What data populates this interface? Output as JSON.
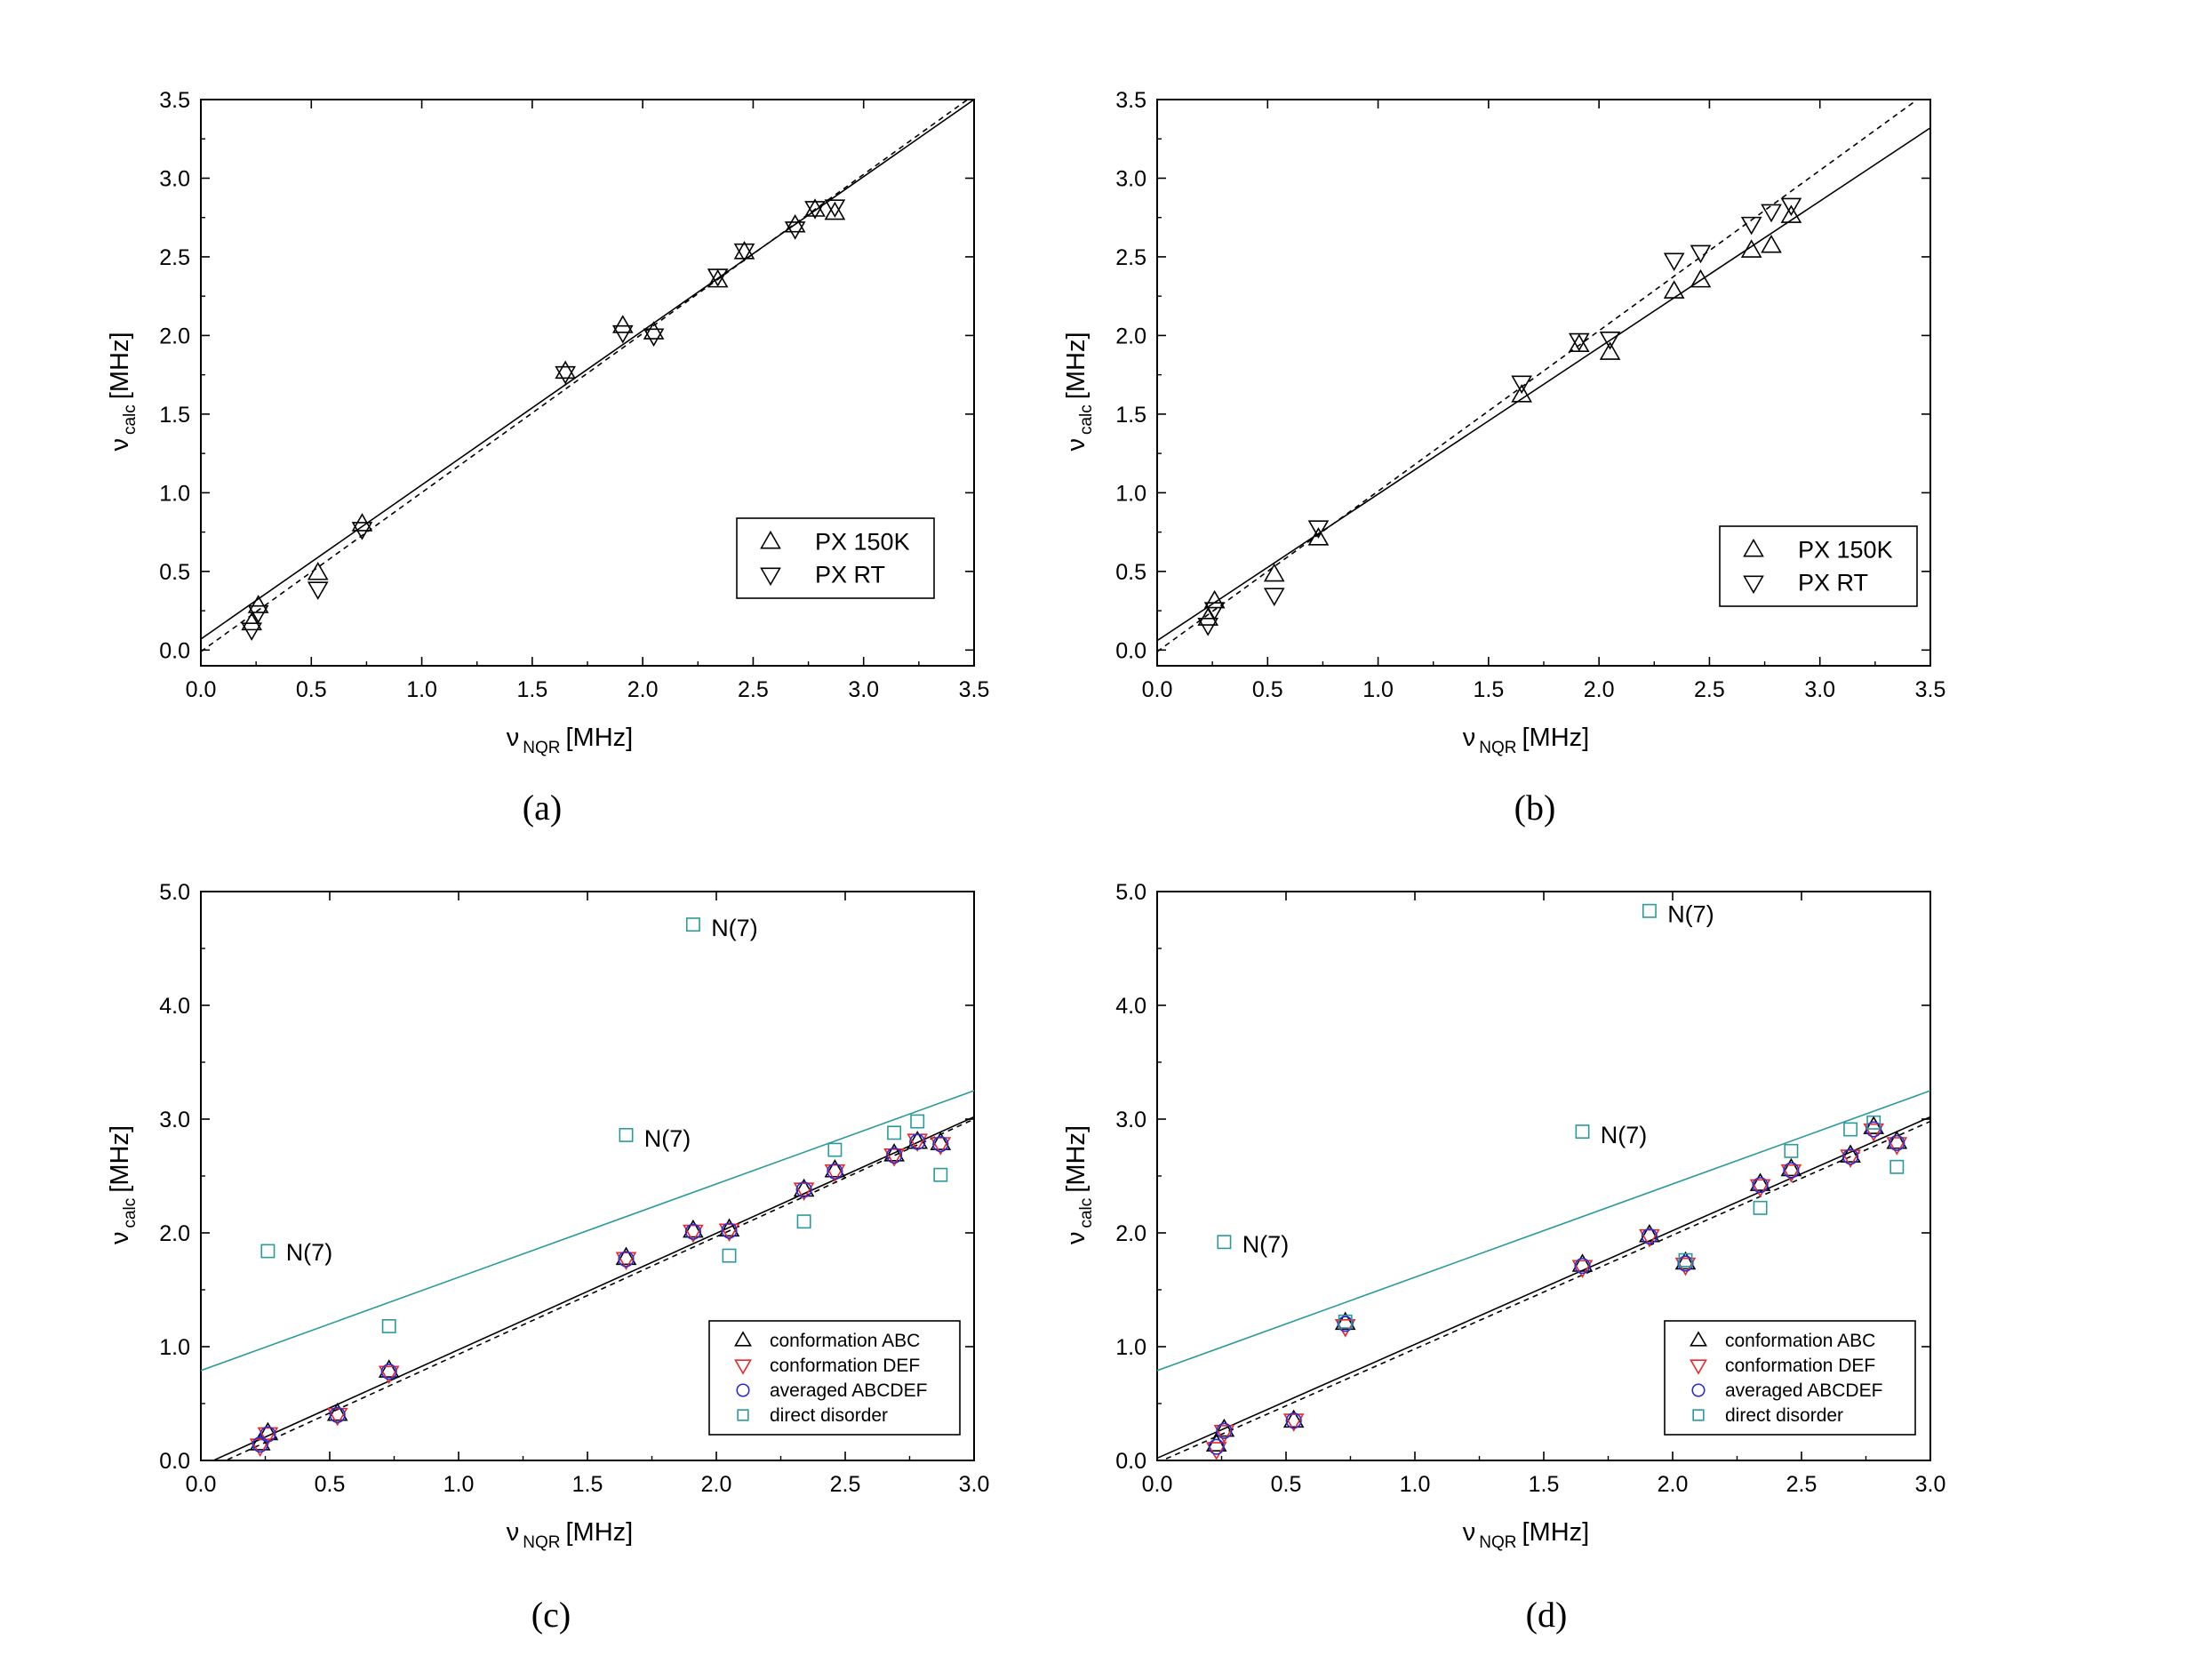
{
  "colors": {
    "abc": "#000000",
    "def": "#e8282a",
    "avg": "#2a2ad8",
    "disorder": "#2a9a9a",
    "axis": "#000000"
  },
  "chart_data": [
    {
      "id": "a",
      "type": "scatter",
      "caption": "(a)",
      "xlabel_main": "ν",
      "xlabel_sub": "NQR",
      "xlabel_unit": "[MHz]",
      "ylabel_main": "ν",
      "ylabel_sub": "calc",
      "ylabel_unit": "[MHz]",
      "xlim": [
        0,
        3.5
      ],
      "ylim": [
        -0.1,
        3.5
      ],
      "xticks": [
        "0.0",
        "0.5",
        "1.0",
        "1.5",
        "2.0",
        "2.5",
        "3.0",
        "3.5"
      ],
      "yticks": [
        "0.0",
        "0.5",
        "1.0",
        "1.5",
        "2.0",
        "2.5",
        "3.0",
        "3.5"
      ],
      "legend": [
        "PX 150K",
        "PX RT"
      ],
      "legend_placement": "bottom-right",
      "series": [
        {
          "name": "PX 150K",
          "marker": "triangle-up",
          "color_key": "abc",
          "points": [
            [
              0.23,
              0.17
            ],
            [
              0.26,
              0.28
            ],
            [
              0.53,
              0.49
            ],
            [
              0.73,
              0.8
            ],
            [
              1.65,
              1.77
            ],
            [
              1.91,
              2.06
            ],
            [
              2.05,
              2.02
            ],
            [
              2.34,
              2.35
            ],
            [
              2.46,
              2.53
            ],
            [
              2.69,
              2.7
            ],
            [
              2.78,
              2.8
            ],
            [
              2.87,
              2.78
            ]
          ]
        },
        {
          "name": "PX RT",
          "marker": "triangle-down",
          "color_key": "abc",
          "points": [
            [
              0.23,
              0.13
            ],
            [
              0.26,
              0.24
            ],
            [
              0.53,
              0.39
            ],
            [
              0.73,
              0.77
            ],
            [
              1.65,
              1.76
            ],
            [
              1.91,
              2.02
            ],
            [
              2.05,
              2.0
            ],
            [
              2.34,
              2.38
            ],
            [
              2.46,
              2.54
            ],
            [
              2.69,
              2.68
            ],
            [
              2.78,
              2.81
            ],
            [
              2.87,
              2.82
            ]
          ]
        }
      ],
      "fits": [
        {
          "style": "solid",
          "x0": 0.0,
          "y0": 0.07,
          "x1": 3.5,
          "y1": 3.5
        },
        {
          "style": "dashed",
          "x0": 0.0,
          "y0": -0.01,
          "x1": 3.5,
          "y1": 3.53
        }
      ],
      "labels": []
    },
    {
      "id": "b",
      "type": "scatter",
      "caption": "(b)",
      "xlabel_main": "ν",
      "xlabel_sub": "NQR",
      "xlabel_unit": "[MHz]",
      "ylabel_main": "ν",
      "ylabel_sub": "calc",
      "ylabel_unit": "[MHz]",
      "xlim": [
        0,
        3.5
      ],
      "ylim": [
        -0.1,
        3.5
      ],
      "xticks": [
        "0.0",
        "0.5",
        "1.0",
        "1.5",
        "2.0",
        "2.5",
        "3.0",
        "3.5"
      ],
      "yticks": [
        "0.0",
        "0.5",
        "1.0",
        "1.5",
        "2.0",
        "2.5",
        "3.0",
        "3.5"
      ],
      "legend": [
        "PX 150K",
        "PX RT"
      ],
      "legend_placement": "bottom-right",
      "series": [
        {
          "name": "PX 150K",
          "marker": "triangle-up",
          "color_key": "abc",
          "points": [
            [
              0.23,
              0.2
            ],
            [
              0.26,
              0.31
            ],
            [
              0.53,
              0.48
            ],
            [
              0.73,
              0.71
            ],
            [
              1.65,
              1.62
            ],
            [
              1.91,
              1.94
            ],
            [
              2.05,
              1.89
            ],
            [
              2.34,
              2.28
            ],
            [
              2.46,
              2.35
            ],
            [
              2.69,
              2.54
            ],
            [
              2.78,
              2.57
            ],
            [
              2.87,
              2.76
            ]
          ]
        },
        {
          "name": "PX RT",
          "marker": "triangle-down",
          "color_key": "abc",
          "points": [
            [
              0.23,
              0.16
            ],
            [
              0.26,
              0.26
            ],
            [
              0.53,
              0.35
            ],
            [
              0.73,
              0.78
            ],
            [
              1.65,
              1.7
            ],
            [
              1.91,
              1.97
            ],
            [
              2.05,
              1.98
            ],
            [
              2.34,
              2.48
            ],
            [
              2.46,
              2.53
            ],
            [
              2.69,
              2.71
            ],
            [
              2.78,
              2.79
            ],
            [
              2.87,
              2.83
            ]
          ]
        }
      ],
      "fits": [
        {
          "style": "solid",
          "x0": 0.0,
          "y0": 0.06,
          "x1": 3.5,
          "y1": 3.32
        },
        {
          "style": "dashed",
          "x0": 0.0,
          "y0": -0.01,
          "x1": 3.5,
          "y1": 3.56
        }
      ],
      "labels": []
    },
    {
      "id": "c",
      "type": "scatter",
      "caption": "(c)",
      "xlabel_main": "ν",
      "xlabel_sub": "NQR",
      "xlabel_unit": "[MHz]",
      "ylabel_main": "ν",
      "ylabel_sub": "calc",
      "ylabel_unit": "[MHz]",
      "xlim": [
        0,
        3.0
      ],
      "ylim": [
        0,
        5.0
      ],
      "xticks": [
        "0.0",
        "0.5",
        "1.0",
        "1.5",
        "2.0",
        "2.5",
        "3.0"
      ],
      "yticks": [
        "0.0",
        "1.0",
        "2.0",
        "3.0",
        "4.0",
        "5.0"
      ],
      "legend": [
        "conformation ABC",
        "conformation DEF",
        "averaged ABCDEF",
        "direct disorder"
      ],
      "legend_placement": "bottom-right",
      "series": [
        {
          "name": "conformation ABC",
          "marker": "triangle-up",
          "color_key": "abc",
          "points": [
            [
              0.23,
              0.15
            ],
            [
              0.26,
              0.24
            ],
            [
              0.53,
              0.41
            ],
            [
              0.73,
              0.79
            ],
            [
              1.65,
              1.78
            ],
            [
              1.91,
              2.02
            ],
            [
              2.05,
              2.03
            ],
            [
              2.34,
              2.38
            ],
            [
              2.46,
              2.55
            ],
            [
              2.69,
              2.69
            ],
            [
              2.78,
              2.8
            ],
            [
              2.87,
              2.79
            ]
          ]
        },
        {
          "name": "conformation DEF",
          "marker": "triangle-down",
          "color_key": "def",
          "points": [
            [
              0.23,
              0.13
            ],
            [
              0.26,
              0.23
            ],
            [
              0.53,
              0.4
            ],
            [
              0.73,
              0.77
            ],
            [
              1.65,
              1.77
            ],
            [
              1.91,
              2.01
            ],
            [
              2.05,
              2.02
            ],
            [
              2.34,
              2.38
            ],
            [
              2.46,
              2.54
            ],
            [
              2.69,
              2.68
            ],
            [
              2.78,
              2.81
            ],
            [
              2.87,
              2.78
            ]
          ]
        },
        {
          "name": "averaged ABCDEF",
          "marker": "circle",
          "color_key": "avg",
          "points": [
            [
              0.23,
              0.14
            ],
            [
              0.26,
              0.23
            ],
            [
              0.53,
              0.4
            ],
            [
              0.73,
              0.78
            ],
            [
              1.65,
              1.77
            ],
            [
              1.91,
              2.01
            ],
            [
              2.05,
              2.02
            ],
            [
              2.34,
              2.38
            ],
            [
              2.46,
              2.54
            ],
            [
              2.69,
              2.68
            ],
            [
              2.78,
              2.8
            ],
            [
              2.87,
              2.78
            ]
          ]
        },
        {
          "name": "direct disorder",
          "marker": "square",
          "color_key": "disorder",
          "points": [
            [
              0.26,
              1.84
            ],
            [
              0.73,
              1.18
            ],
            [
              1.65,
              2.86
            ],
            [
              1.91,
              4.71
            ],
            [
              2.05,
              1.8
            ],
            [
              2.34,
              2.1
            ],
            [
              2.46,
              2.73
            ],
            [
              2.69,
              2.88
            ],
            [
              2.78,
              2.98
            ],
            [
              2.87,
              2.51
            ]
          ]
        }
      ],
      "fits": [
        {
          "style": "solid",
          "color_key": "disorder",
          "x0": 0.0,
          "y0": 0.79,
          "x1": 3.0,
          "y1": 3.25
        },
        {
          "style": "solid",
          "color_key": "abc",
          "x0": 0.0,
          "y0": -0.05,
          "x1": 3.0,
          "y1": 3.02
        },
        {
          "style": "dashed",
          "color_key": "abc",
          "x0": 0.0,
          "y0": -0.1,
          "x1": 3.0,
          "y1": 3.0
        }
      ],
      "labels": [
        {
          "text": "N(7)",
          "x": 0.33,
          "y": 1.83
        },
        {
          "text": "N(7)",
          "x": 1.72,
          "y": 2.83
        },
        {
          "text": "N(7)",
          "x": 1.98,
          "y": 4.68
        }
      ]
    },
    {
      "id": "d",
      "type": "scatter",
      "caption": "(d)",
      "xlabel_main": "ν",
      "xlabel_sub": "NQR",
      "xlabel_unit": "[MHz]",
      "ylabel_main": "ν",
      "ylabel_sub": "calc",
      "ylabel_unit": "[MHz]",
      "xlim": [
        0,
        3.0
      ],
      "ylim": [
        0,
        5.0
      ],
      "xticks": [
        "0.0",
        "0.5",
        "1.0",
        "1.5",
        "2.0",
        "2.5",
        "3.0"
      ],
      "yticks": [
        "0.0",
        "1.0",
        "2.0",
        "3.0",
        "4.0",
        "5.0"
      ],
      "legend": [
        "conformation ABC",
        "conformation DEF",
        "averaged ABCDEF",
        "direct disorder"
      ],
      "legend_placement": "bottom-right",
      "series": [
        {
          "name": "conformation ABC",
          "marker": "triangle-up",
          "color_key": "abc",
          "points": [
            [
              0.23,
              0.14
            ],
            [
              0.26,
              0.27
            ],
            [
              0.53,
              0.35
            ],
            [
              0.73,
              1.21
            ],
            [
              1.65,
              1.72
            ],
            [
              1.91,
              1.98
            ],
            [
              2.05,
              1.74
            ],
            [
              2.34,
              2.43
            ],
            [
              2.46,
              2.56
            ],
            [
              2.69,
              2.68
            ],
            [
              2.78,
              2.93
            ],
            [
              2.87,
              2.8
            ]
          ]
        },
        {
          "name": "conformation DEF",
          "marker": "triangle-down",
          "color_key": "def",
          "points": [
            [
              0.23,
              0.1
            ],
            [
              0.26,
              0.25
            ],
            [
              0.53,
              0.35
            ],
            [
              0.73,
              1.18
            ],
            [
              1.65,
              1.7
            ],
            [
              1.91,
              1.97
            ],
            [
              2.05,
              1.72
            ],
            [
              2.34,
              2.41
            ],
            [
              2.46,
              2.54
            ],
            [
              2.69,
              2.67
            ],
            [
              2.78,
              2.9
            ],
            [
              2.87,
              2.78
            ]
          ]
        },
        {
          "name": "averaged ABCDEF",
          "marker": "circle",
          "color_key": "avg",
          "points": [
            [
              0.23,
              0.12
            ],
            [
              0.26,
              0.26
            ],
            [
              0.53,
              0.35
            ],
            [
              0.73,
              1.2
            ],
            [
              1.65,
              1.71
            ],
            [
              1.91,
              1.97
            ],
            [
              2.05,
              1.73
            ],
            [
              2.34,
              2.42
            ],
            [
              2.46,
              2.55
            ],
            [
              2.69,
              2.67
            ],
            [
              2.78,
              2.91
            ],
            [
              2.87,
              2.79
            ]
          ]
        },
        {
          "name": "direct disorder",
          "marker": "square",
          "color_key": "disorder",
          "points": [
            [
              0.26,
              1.92
            ],
            [
              0.73,
              1.22
            ],
            [
              1.65,
              2.89
            ],
            [
              1.91,
              4.83
            ],
            [
              2.05,
              1.76
            ],
            [
              2.34,
              2.22
            ],
            [
              2.46,
              2.72
            ],
            [
              2.69,
              2.91
            ],
            [
              2.78,
              2.97
            ],
            [
              2.87,
              2.58
            ]
          ]
        }
      ],
      "fits": [
        {
          "style": "solid",
          "color_key": "disorder",
          "x0": 0.0,
          "y0": 0.79,
          "x1": 3.0,
          "y1": 3.25
        },
        {
          "style": "solid",
          "color_key": "abc",
          "x0": 0.0,
          "y0": 0.02,
          "x1": 3.0,
          "y1": 3.02
        },
        {
          "style": "dashed",
          "color_key": "abc",
          "x0": 0.0,
          "y0": -0.02,
          "x1": 3.0,
          "y1": 2.98
        }
      ],
      "labels": [
        {
          "text": "N(7)",
          "x": 0.33,
          "y": 1.9
        },
        {
          "text": "N(7)",
          "x": 1.72,
          "y": 2.86
        },
        {
          "text": "N(7)",
          "x": 1.98,
          "y": 4.8
        }
      ]
    }
  ]
}
